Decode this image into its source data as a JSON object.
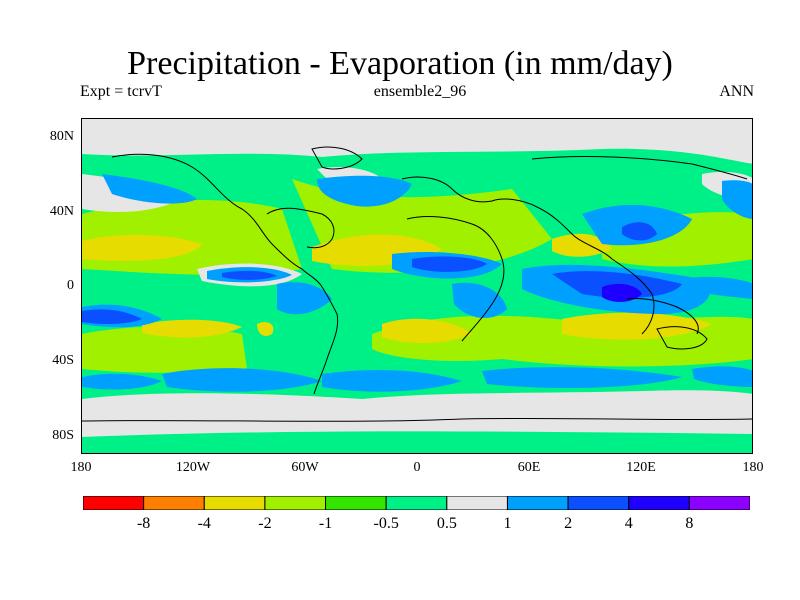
{
  "figure": {
    "title": "Precipitation - Evaporation (in mm/day)",
    "left_string": "Expt = tcrvT",
    "center_string": "ensemble2_96",
    "right_string": "ANN"
  },
  "map": {
    "projection": "cylindrical-equidistant",
    "lon_range": [
      -180,
      180
    ],
    "lat_range": [
      -90,
      90
    ],
    "background_fill_level": "0.5 to -0.5",
    "lat_ticks": [
      "80N",
      "40N",
      "0",
      "40S",
      "80S"
    ],
    "lon_ticks": [
      "180",
      "120W",
      "60W",
      "0",
      "60E",
      "120E",
      "180"
    ]
  },
  "colorbar": {
    "colors": [
      "#ff0000",
      "#ff8000",
      "#e6dc00",
      "#a0f000",
      "#32e600",
      "#00f088",
      "#e6e6e6",
      "#00a0ff",
      "#0a50ff",
      "#1e00ff",
      "#8c00ff"
    ],
    "labels": [
      "-8",
      "-4",
      "-2",
      "-1",
      "-0.5",
      "0.5",
      "1",
      "2",
      "4",
      "8"
    ]
  }
}
